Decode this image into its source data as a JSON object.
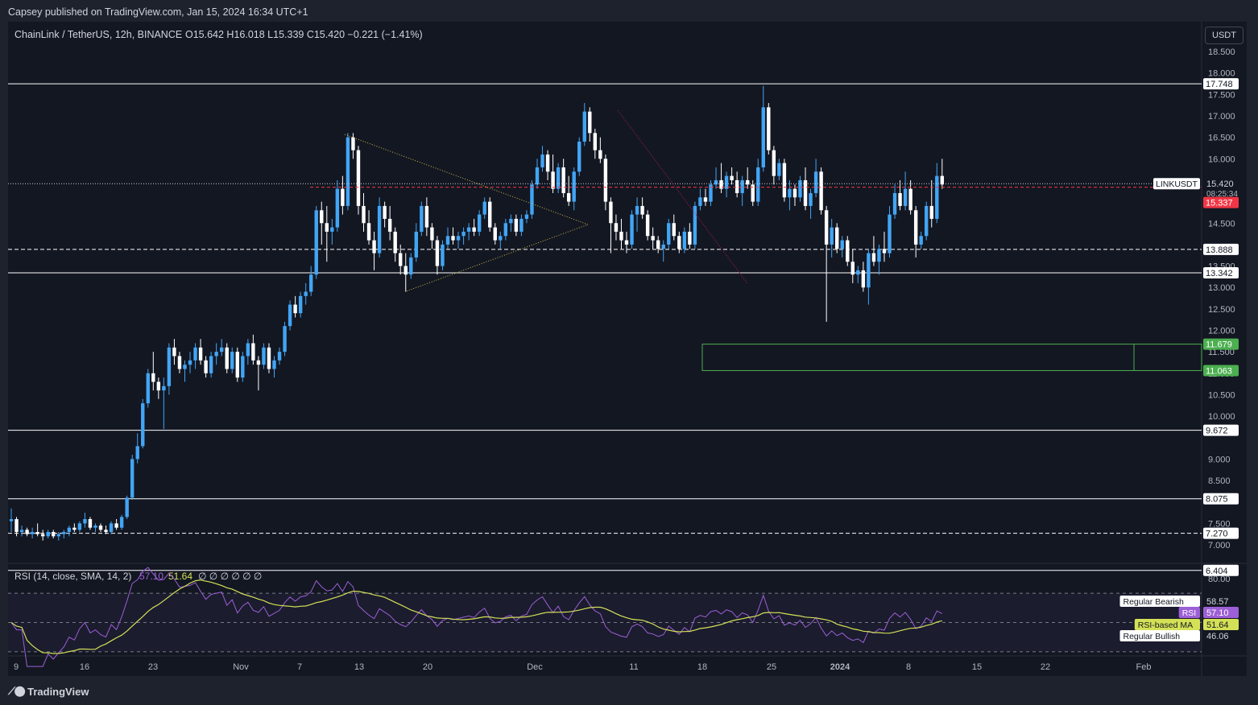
{
  "header": {
    "published": "Capsey published on TradingView.com, Jan 15, 2024 16:34 UTC+1",
    "symbol": "ChainLink / TetherUS, 12h, BINANCE",
    "ohlc": {
      "o": "O15.642",
      "h": "H16.018",
      "l": "L15.339",
      "c": "C15.420",
      "chg": "−0.221 (−1.41%)"
    }
  },
  "footer": {
    "logo": "TradingView"
  },
  "axis": {
    "currency": "USDT"
  },
  "colors": {
    "up": "#42a5f5",
    "down": "#ffffff",
    "bg": "#131722",
    "rsi": "#9c5fd6",
    "ma": "#d4e157",
    "zone": "#4caf50",
    "price_line": "#f23645"
  },
  "chart_data": {
    "type": "candlestick",
    "price_axis": {
      "min": 6.4,
      "max": 18.8,
      "ticks": [
        "7.000",
        "7.500",
        "8.500",
        "9.000",
        "10.000",
        "10.500",
        "11.000",
        "11.500",
        "12.000",
        "12.500",
        "13.000",
        "13.500",
        "14.500",
        "15.000",
        "16.000",
        "16.500",
        "17.000",
        "17.500",
        "18.000",
        "18.500"
      ]
    },
    "time_axis": {
      "ticks": [
        "9",
        "16",
        "23",
        "Nov",
        "7",
        "13",
        "20",
        "Dec",
        "11",
        "18",
        "25",
        "2024",
        "8",
        "15",
        "22",
        "Feb"
      ]
    },
    "horizontal_levels": [
      {
        "value": 17.748,
        "label": "17.748",
        "style": "solid"
      },
      {
        "value": 13.888,
        "label": "13.888",
        "style": "dashed"
      },
      {
        "value": 13.342,
        "label": "13.342",
        "style": "solid"
      },
      {
        "value": 9.672,
        "label": "9.672",
        "style": "solid"
      },
      {
        "value": 8.075,
        "label": "8.075",
        "style": "solid"
      },
      {
        "value": 7.27,
        "label": "7.270",
        "style": "dashed"
      },
      {
        "value": 6.404,
        "label": "6.404",
        "style": "solid"
      }
    ],
    "demand_zone": {
      "top": 11.679,
      "bottom": 11.063,
      "top_label": "11.679",
      "bottom_label": "11.063"
    },
    "last_price": {
      "ticker": "LINKUSDT",
      "value": "15.420",
      "countdown": "08:25:34",
      "prev_close": "15.337"
    },
    "candles": [
      [
        7.55,
        7.85,
        7.3,
        7.6
      ],
      [
        7.6,
        7.65,
        7.2,
        7.3
      ],
      [
        7.3,
        7.45,
        7.2,
        7.35
      ],
      [
        7.35,
        7.4,
        7.2,
        7.25
      ],
      [
        7.25,
        7.4,
        7.15,
        7.3
      ],
      [
        7.3,
        7.5,
        7.2,
        7.25
      ],
      [
        7.25,
        7.35,
        7.1,
        7.2
      ],
      [
        7.2,
        7.35,
        7.15,
        7.3
      ],
      [
        7.3,
        7.35,
        7.15,
        7.2
      ],
      [
        7.2,
        7.3,
        7.1,
        7.25
      ],
      [
        7.25,
        7.35,
        7.15,
        7.3
      ],
      [
        7.3,
        7.45,
        7.2,
        7.4
      ],
      [
        7.4,
        7.5,
        7.3,
        7.35
      ],
      [
        7.35,
        7.55,
        7.3,
        7.5
      ],
      [
        7.5,
        7.75,
        7.4,
        7.6
      ],
      [
        7.6,
        7.65,
        7.35,
        7.4
      ],
      [
        7.4,
        7.5,
        7.3,
        7.45
      ],
      [
        7.45,
        7.5,
        7.3,
        7.35
      ],
      [
        7.35,
        7.45,
        7.25,
        7.3
      ],
      [
        7.3,
        7.55,
        7.25,
        7.5
      ],
      [
        7.5,
        7.6,
        7.35,
        7.4
      ],
      [
        7.4,
        7.7,
        7.35,
        7.65
      ],
      [
        7.65,
        8.15,
        7.6,
        8.1
      ],
      [
        8.1,
        9.1,
        8.05,
        9.0
      ],
      [
        9.0,
        9.6,
        8.9,
        9.3
      ],
      [
        9.3,
        10.4,
        9.25,
        10.3
      ],
      [
        10.3,
        11.1,
        10.2,
        11.0
      ],
      [
        11.0,
        11.5,
        10.6,
        10.8
      ],
      [
        10.8,
        10.9,
        10.4,
        10.6
      ],
      [
        10.6,
        10.9,
        9.7,
        10.7
      ],
      [
        10.7,
        11.7,
        10.5,
        11.6
      ],
      [
        11.6,
        11.8,
        11.2,
        11.4
      ],
      [
        11.4,
        11.5,
        11.0,
        11.1
      ],
      [
        11.1,
        11.3,
        10.8,
        11.2
      ],
      [
        11.2,
        11.5,
        11.0,
        11.3
      ],
      [
        11.3,
        11.7,
        11.1,
        11.6
      ],
      [
        11.6,
        11.8,
        11.2,
        11.3
      ],
      [
        11.3,
        11.4,
        10.9,
        11.0
      ],
      [
        11.0,
        11.5,
        10.9,
        11.4
      ],
      [
        11.4,
        11.7,
        11.2,
        11.5
      ],
      [
        11.5,
        11.8,
        11.4,
        11.6
      ],
      [
        11.6,
        11.7,
        11.0,
        11.1
      ],
      [
        11.1,
        11.6,
        11.0,
        11.5
      ],
      [
        11.5,
        11.6,
        10.8,
        10.9
      ],
      [
        10.9,
        11.5,
        10.8,
        11.4
      ],
      [
        11.4,
        11.8,
        11.2,
        11.7
      ],
      [
        11.7,
        11.9,
        11.2,
        11.3
      ],
      [
        11.3,
        11.4,
        10.6,
        11.2
      ],
      [
        11.2,
        11.7,
        11.1,
        11.6
      ],
      [
        11.6,
        11.7,
        11.0,
        11.1
      ],
      [
        11.1,
        11.4,
        10.9,
        11.3
      ],
      [
        11.3,
        11.6,
        11.2,
        11.5
      ],
      [
        11.5,
        12.2,
        11.4,
        12.1
      ],
      [
        12.1,
        12.7,
        12.0,
        12.6
      ],
      [
        12.6,
        12.8,
        12.3,
        12.4
      ],
      [
        12.4,
        12.9,
        12.3,
        12.8
      ],
      [
        12.8,
        13.1,
        12.6,
        12.9
      ],
      [
        12.9,
        13.5,
        12.8,
        13.3
      ],
      [
        13.3,
        14.9,
        13.2,
        14.8
      ],
      [
        14.8,
        15.0,
        14.0,
        14.5
      ],
      [
        14.5,
        14.9,
        13.6,
        14.3
      ],
      [
        14.3,
        14.6,
        14.0,
        14.4
      ],
      [
        14.4,
        15.5,
        14.3,
        15.3
      ],
      [
        15.3,
        15.6,
        14.7,
        14.9
      ],
      [
        14.9,
        16.6,
        14.8,
        16.5
      ],
      [
        16.5,
        16.6,
        16.0,
        16.2
      ],
      [
        16.2,
        16.3,
        14.7,
        14.9
      ],
      [
        14.9,
        15.2,
        14.3,
        14.5
      ],
      [
        14.5,
        14.8,
        14.0,
        14.1
      ],
      [
        14.1,
        14.3,
        13.4,
        13.8
      ],
      [
        13.8,
        15.1,
        13.7,
        14.9
      ],
      [
        14.9,
        15.0,
        14.4,
        14.6
      ],
      [
        14.6,
        14.9,
        14.1,
        14.3
      ],
      [
        14.3,
        14.4,
        13.6,
        13.8
      ],
      [
        13.8,
        14.0,
        13.3,
        13.5
      ],
      [
        13.5,
        13.8,
        12.9,
        13.3
      ],
      [
        13.3,
        13.8,
        13.2,
        13.7
      ],
      [
        13.7,
        14.5,
        13.6,
        14.3
      ],
      [
        14.3,
        15.0,
        14.2,
        14.9
      ],
      [
        14.9,
        15.1,
        14.2,
        14.4
      ],
      [
        14.4,
        14.5,
        13.9,
        14.1
      ],
      [
        14.1,
        14.2,
        13.3,
        13.5
      ],
      [
        13.5,
        14.1,
        13.4,
        14.0
      ],
      [
        14.0,
        14.4,
        13.9,
        14.2
      ],
      [
        14.2,
        14.4,
        14.0,
        14.1
      ],
      [
        14.1,
        14.3,
        13.9,
        14.2
      ],
      [
        14.2,
        14.4,
        14.0,
        14.3
      ],
      [
        14.3,
        14.5,
        14.1,
        14.4
      ],
      [
        14.4,
        14.6,
        14.2,
        14.3
      ],
      [
        14.3,
        14.8,
        14.2,
        14.7
      ],
      [
        14.7,
        15.1,
        14.6,
        15.0
      ],
      [
        15.0,
        15.1,
        14.3,
        14.4
      ],
      [
        14.4,
        14.5,
        14.0,
        14.1
      ],
      [
        14.1,
        14.3,
        13.9,
        14.2
      ],
      [
        14.2,
        14.6,
        14.1,
        14.5
      ],
      [
        14.5,
        14.7,
        14.3,
        14.6
      ],
      [
        14.6,
        14.7,
        14.2,
        14.3
      ],
      [
        14.3,
        14.7,
        14.2,
        14.6
      ],
      [
        14.6,
        14.8,
        14.5,
        14.7
      ],
      [
        14.7,
        15.5,
        14.6,
        15.4
      ],
      [
        15.4,
        16.0,
        15.3,
        15.8
      ],
      [
        15.8,
        16.3,
        15.7,
        16.1
      ],
      [
        16.1,
        16.2,
        15.5,
        15.7
      ],
      [
        15.7,
        16.1,
        15.2,
        15.3
      ],
      [
        15.3,
        15.9,
        15.2,
        15.8
      ],
      [
        15.8,
        16.0,
        15.1,
        15.2
      ],
      [
        15.2,
        15.6,
        14.9,
        15.0
      ],
      [
        15.0,
        15.8,
        14.8,
        15.7
      ],
      [
        15.7,
        16.5,
        15.6,
        16.4
      ],
      [
        16.4,
        17.3,
        16.3,
        17.1
      ],
      [
        17.1,
        17.2,
        16.4,
        16.6
      ],
      [
        16.6,
        16.7,
        16.0,
        16.2
      ],
      [
        16.2,
        16.5,
        15.9,
        16.0
      ],
      [
        16.0,
        16.1,
        14.8,
        15.0
      ],
      [
        15.0,
        15.1,
        13.8,
        14.5
      ],
      [
        14.5,
        14.7,
        14.1,
        14.3
      ],
      [
        14.3,
        14.6,
        13.9,
        14.1
      ],
      [
        14.1,
        14.3,
        13.8,
        14.0
      ],
      [
        14.0,
        14.8,
        13.9,
        14.7
      ],
      [
        14.7,
        15.1,
        14.3,
        14.9
      ],
      [
        14.9,
        15.1,
        14.6,
        14.7
      ],
      [
        14.7,
        14.8,
        14.1,
        14.2
      ],
      [
        14.2,
        14.4,
        13.9,
        14.1
      ],
      [
        14.1,
        14.2,
        13.8,
        13.9
      ],
      [
        13.9,
        14.1,
        13.6,
        14.0
      ],
      [
        14.0,
        14.6,
        13.9,
        14.5
      ],
      [
        14.5,
        14.7,
        14.1,
        14.2
      ],
      [
        14.2,
        14.3,
        13.8,
        13.9
      ],
      [
        13.9,
        14.4,
        13.8,
        14.3
      ],
      [
        14.3,
        14.5,
        13.9,
        14.0
      ],
      [
        14.0,
        15.0,
        13.9,
        14.9
      ],
      [
        14.9,
        15.3,
        14.8,
        15.1
      ],
      [
        15.1,
        15.3,
        14.9,
        15.0
      ],
      [
        15.0,
        15.5,
        14.9,
        15.4
      ],
      [
        15.4,
        15.8,
        15.3,
        15.5
      ],
      [
        15.5,
        15.9,
        15.2,
        15.3
      ],
      [
        15.3,
        15.7,
        15.1,
        15.6
      ],
      [
        15.6,
        15.8,
        15.4,
        15.5
      ],
      [
        15.5,
        15.7,
        15.1,
        15.2
      ],
      [
        15.2,
        15.6,
        14.9,
        15.5
      ],
      [
        15.5,
        15.8,
        15.3,
        15.4
      ],
      [
        15.4,
        15.5,
        14.9,
        15.0
      ],
      [
        15.0,
        16.0,
        14.9,
        15.8
      ],
      [
        15.8,
        17.7,
        15.7,
        17.2
      ],
      [
        17.2,
        17.3,
        16.1,
        16.2
      ],
      [
        16.2,
        16.3,
        15.4,
        15.6
      ],
      [
        15.6,
        16.0,
        15.5,
        15.9
      ],
      [
        15.9,
        16.0,
        15.0,
        15.1
      ],
      [
        15.1,
        15.5,
        14.8,
        15.3
      ],
      [
        15.3,
        15.4,
        14.9,
        15.1
      ],
      [
        15.1,
        15.6,
        15.0,
        15.5
      ],
      [
        15.5,
        15.8,
        14.8,
        14.9
      ],
      [
        14.9,
        15.3,
        14.6,
        15.2
      ],
      [
        15.2,
        16.0,
        15.1,
        15.7
      ],
      [
        15.7,
        15.8,
        14.7,
        14.8
      ],
      [
        14.8,
        14.9,
        12.2,
        14.0
      ],
      [
        14.0,
        14.6,
        13.7,
        14.4
      ],
      [
        14.4,
        14.5,
        13.8,
        13.9
      ],
      [
        13.9,
        14.2,
        13.7,
        14.1
      ],
      [
        14.1,
        14.2,
        13.5,
        13.6
      ],
      [
        13.6,
        13.9,
        13.1,
        13.3
      ],
      [
        13.3,
        13.5,
        13.1,
        13.4
      ],
      [
        13.4,
        13.6,
        12.9,
        13.0
      ],
      [
        13.0,
        13.9,
        12.6,
        13.8
      ],
      [
        13.8,
        14.2,
        13.5,
        13.6
      ],
      [
        13.6,
        14.0,
        13.3,
        13.9
      ],
      [
        13.9,
        14.3,
        13.6,
        13.8
      ],
      [
        13.8,
        14.9,
        13.7,
        14.7
      ],
      [
        14.7,
        15.4,
        14.6,
        15.2
      ],
      [
        15.2,
        15.5,
        14.8,
        14.9
      ],
      [
        14.9,
        15.7,
        14.8,
        15.3
      ],
      [
        15.3,
        15.5,
        14.7,
        14.8
      ],
      [
        14.8,
        14.9,
        13.7,
        14.0
      ],
      [
        14.0,
        14.3,
        13.9,
        14.2
      ],
      [
        14.2,
        15.0,
        14.1,
        14.9
      ],
      [
        14.9,
        15.5,
        14.4,
        14.6
      ],
      [
        14.6,
        15.9,
        14.5,
        15.6
      ],
      [
        15.6,
        16.0,
        15.3,
        15.4
      ]
    ],
    "rsi_panel": {
      "title": "RSI (14, close, SMA, 14, 2)",
      "rsi_value": "57.10",
      "ma_value": "51.64",
      "extra": "∅ ∅ ∅ ∅ ∅ ∅",
      "levels": {
        "upper": 70,
        "middle": 50,
        "lower": 30
      },
      "axis_ticks": [
        "80.00"
      ],
      "labels": [
        {
          "name": "Regular Bearish",
          "value": "58.57"
        },
        {
          "name": "RSI",
          "value": "57.10"
        },
        {
          "name": "RSI-based MA",
          "value": "51.64"
        },
        {
          "name": "Regular Bullish",
          "value": "46.06"
        }
      ]
    }
  }
}
